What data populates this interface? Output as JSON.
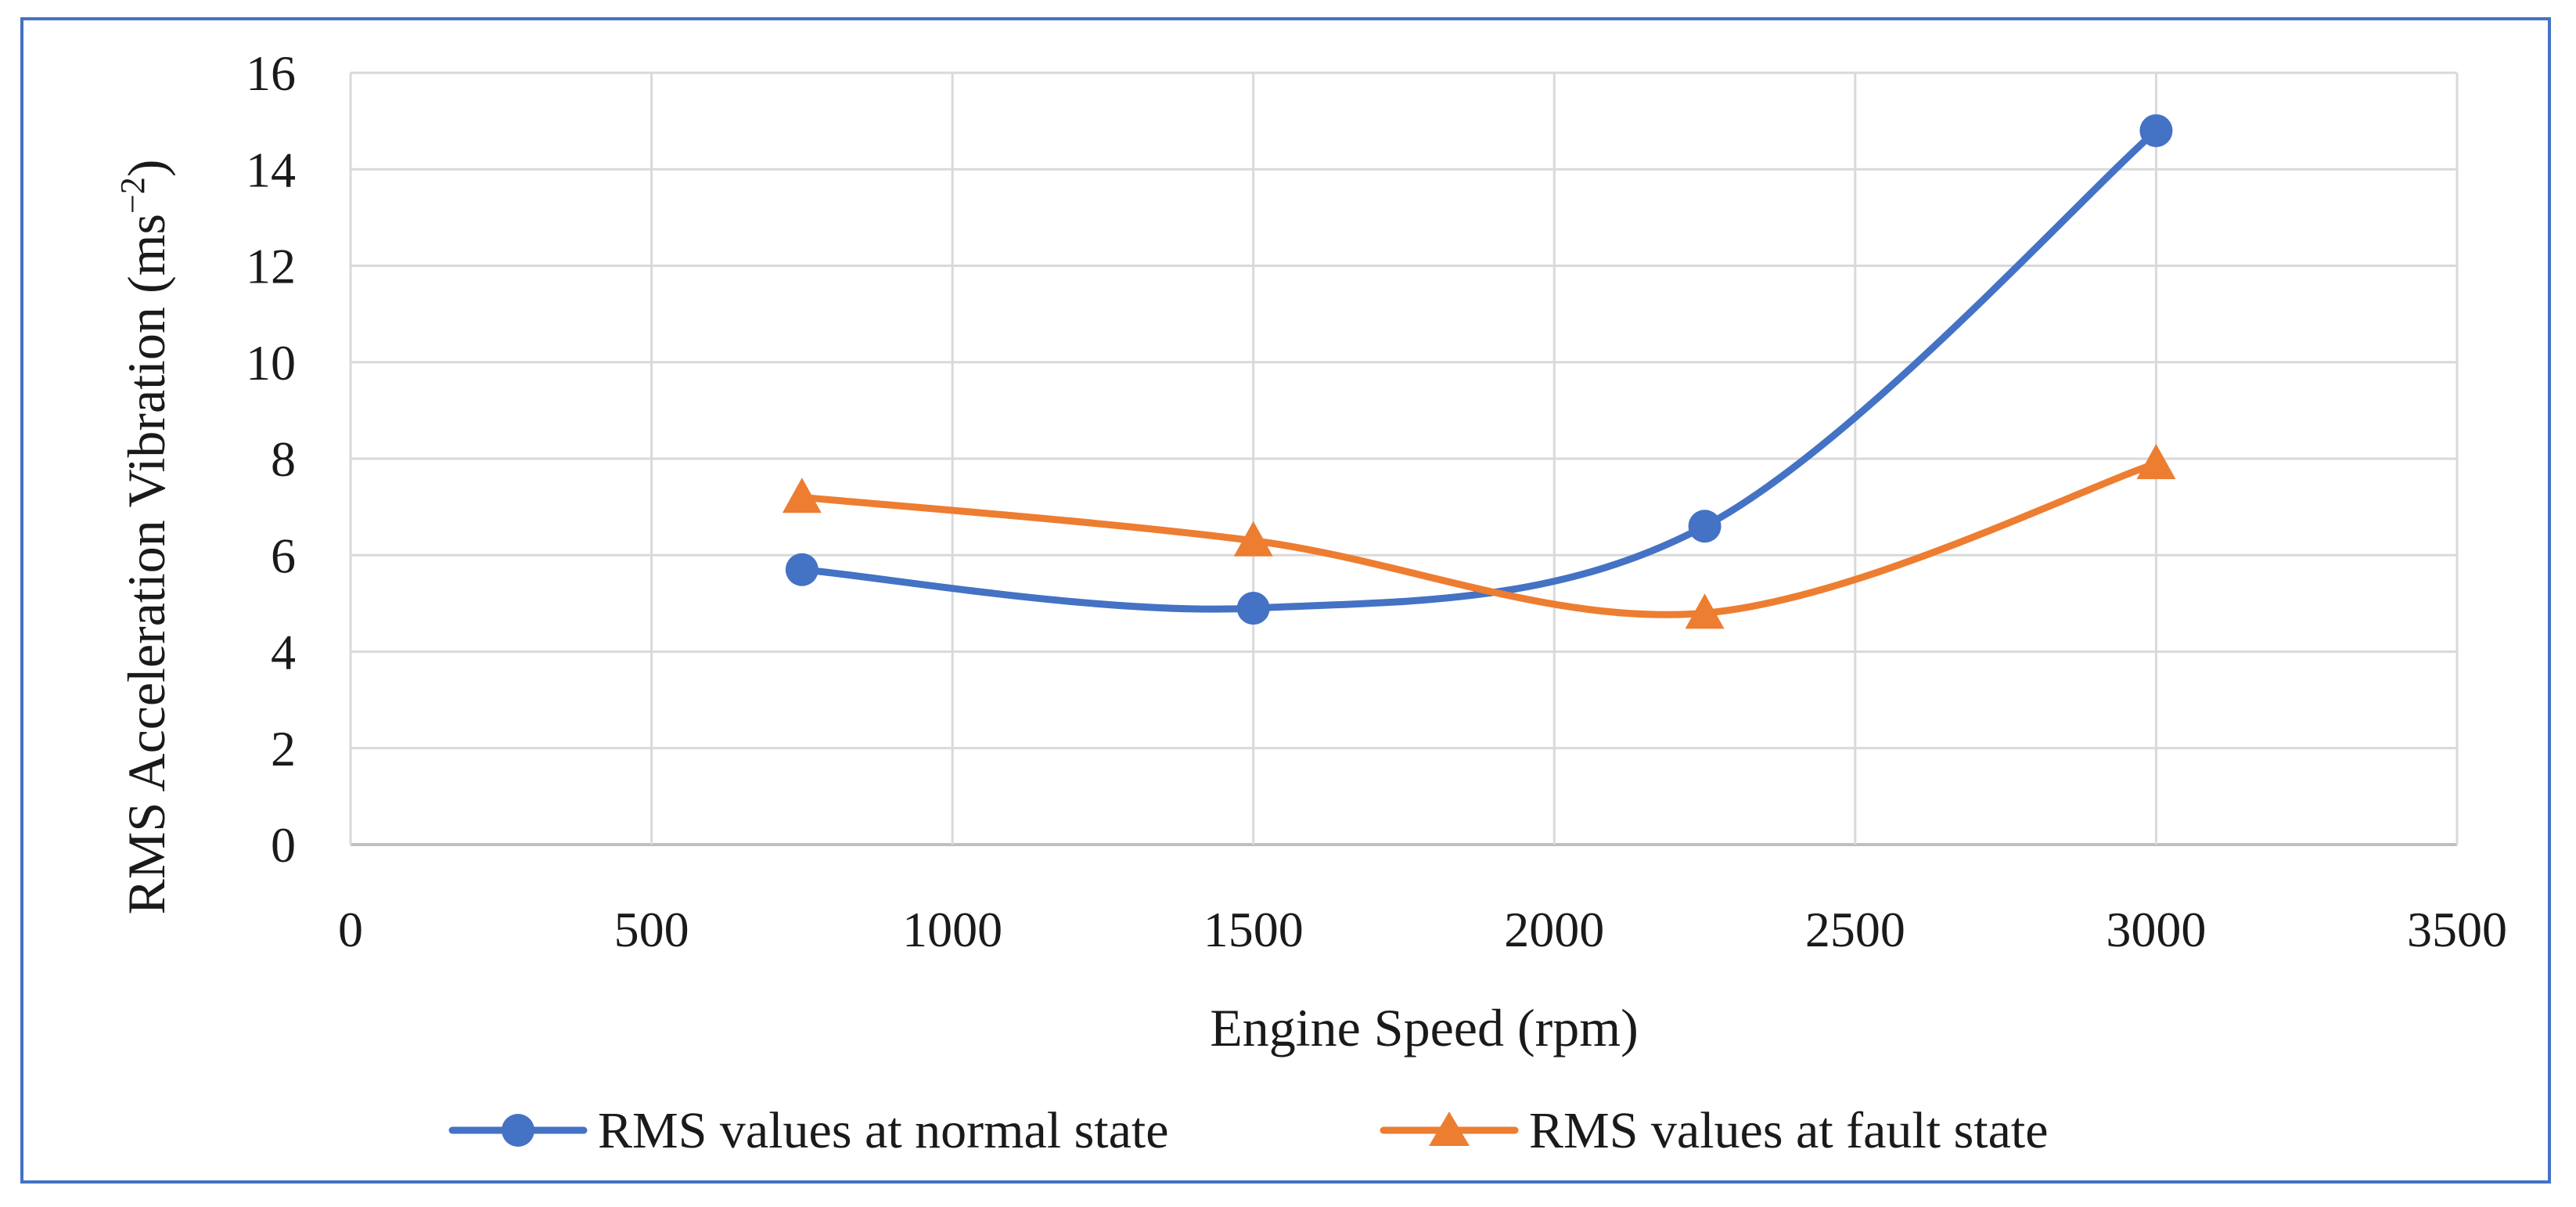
{
  "chart_data": {
    "type": "line",
    "title": "",
    "xlabel": "Engine Speed (rpm)",
    "ylabel_main": "RMS Acceleration Vibration (ms",
    "ylabel_exp": "−2",
    "ylabel_close": ")",
    "xlim": [
      0,
      3500
    ],
    "ylim": [
      0,
      16
    ],
    "xticks": [
      0,
      500,
      1000,
      1500,
      2000,
      2500,
      3000,
      3500
    ],
    "yticks": [
      0,
      2,
      4,
      6,
      8,
      10,
      12,
      14,
      16
    ],
    "grid": true,
    "legend_position": "bottom",
    "smooth": true,
    "series": [
      {
        "name": "RMS values at normal state",
        "color": "#4472c4",
        "marker": "circle",
        "x": [
          750,
          1500,
          2250,
          3000
        ],
        "y": [
          5.7,
          4.9,
          6.6,
          14.8
        ]
      },
      {
        "name": "RMS values at fault state",
        "color": "#ed7d31",
        "marker": "triangle",
        "x": [
          750,
          1500,
          2250,
          3000
        ],
        "y": [
          7.2,
          6.3,
          4.8,
          7.9
        ]
      }
    ]
  },
  "colors": {
    "frame": "#4472c4",
    "grid": "#d9d9d9",
    "axis": "#bfbfbf"
  }
}
